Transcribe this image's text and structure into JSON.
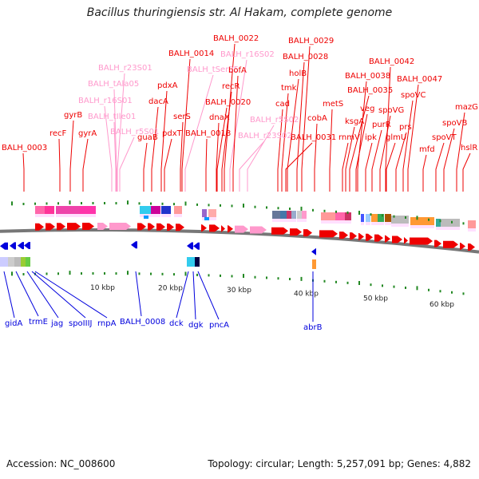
{
  "title": "Bacillus thuringiensis str. Al Hakam, complete genome",
  "footer": {
    "accession": "Accession: NC_008600",
    "summary": "Topology: circular; Length: 5,257,091 bp; Genes: 4,882"
  },
  "colors": {
    "forward_gene": "#ee0000",
    "reverse_gene": "#0000dd",
    "rna_gene": "#ff99cc",
    "tick_green": "#228822",
    "backbone": "#777777"
  },
  "scale_ticks": [
    "10 kbp",
    "20 kbp",
    "30 kbp",
    "40 kbp",
    "50 kbp",
    "60 kbp"
  ],
  "forward_labels": [
    {
      "text": "BALH_0003",
      "type": "cds"
    },
    {
      "text": "recF",
      "type": "cds"
    },
    {
      "text": "gyrB",
      "type": "cds"
    },
    {
      "text": "gyrA",
      "type": "cds"
    },
    {
      "text": "BALH_r5S01",
      "type": "rna"
    },
    {
      "text": "BALH_r16S01",
      "type": "rna"
    },
    {
      "text": "BALH_tIle01",
      "type": "rna"
    },
    {
      "text": "BALH_tAla05",
      "type": "rna"
    },
    {
      "text": "BALH_r23S01",
      "type": "rna"
    },
    {
      "text": "guaB",
      "type": "cds"
    },
    {
      "text": "dacA",
      "type": "cds"
    },
    {
      "text": "pdxA",
      "type": "cds"
    },
    {
      "text": "pdxT",
      "type": "cds"
    },
    {
      "text": "BALH_0014",
      "type": "cds"
    },
    {
      "text": "BALH_tSer05",
      "type": "rna"
    },
    {
      "text": "serS",
      "type": "cds"
    },
    {
      "text": "BALH_0018",
      "type": "cds"
    },
    {
      "text": "BALH_0020",
      "type": "cds"
    },
    {
      "text": "dnaX",
      "type": "cds"
    },
    {
      "text": "recR",
      "type": "cds"
    },
    {
      "text": "BALH_0022",
      "type": "cds"
    },
    {
      "text": "BALH_r16S02",
      "type": "rna"
    },
    {
      "text": "bofA",
      "type": "cds"
    },
    {
      "text": "BALH_r23S02",
      "type": "rna"
    },
    {
      "text": "BALH_r5S02",
      "type": "rna"
    },
    {
      "text": "cad",
      "type": "cds"
    },
    {
      "text": "tmk",
      "type": "cds"
    },
    {
      "text": "BALH_0031",
      "type": "cds"
    },
    {
      "text": "holB",
      "type": "cds"
    },
    {
      "text": "BALH_0028",
      "type": "cds"
    },
    {
      "text": "BALH_0029",
      "type": "cds"
    },
    {
      "text": "cobA",
      "type": "cds"
    },
    {
      "text": "metS",
      "type": "cds"
    },
    {
      "text": "rnmV",
      "type": "cds"
    },
    {
      "text": "ksgA",
      "type": "cds"
    },
    {
      "text": "BALH_0035",
      "type": "cds"
    },
    {
      "text": "ipk",
      "type": "cds"
    },
    {
      "text": "veg",
      "type": "cds"
    },
    {
      "text": "BALH_0038",
      "type": "cds"
    },
    {
      "text": "purR",
      "type": "cds"
    },
    {
      "text": "glmU",
      "type": "cds"
    },
    {
      "text": "spoVG",
      "type": "cds"
    },
    {
      "text": "BALH_0042",
      "type": "cds"
    },
    {
      "text": "prs",
      "type": "cds"
    },
    {
      "text": "spoVC",
      "type": "cds"
    },
    {
      "text": "BALH_0047",
      "type": "cds"
    },
    {
      "text": "mfd",
      "type": "cds"
    },
    {
      "text": "spoVT",
      "type": "cds"
    },
    {
      "text": "spoVB",
      "type": "cds"
    },
    {
      "text": "mazG",
      "type": "cds"
    },
    {
      "text": "hslR",
      "type": "cds"
    }
  ],
  "reverse_labels": [
    "gidA",
    "trmE",
    "jag",
    "spoIIIJ",
    "rnpA",
    "BALH_0008",
    "dck",
    "dgk",
    "pncA",
    "abrB"
  ]
}
